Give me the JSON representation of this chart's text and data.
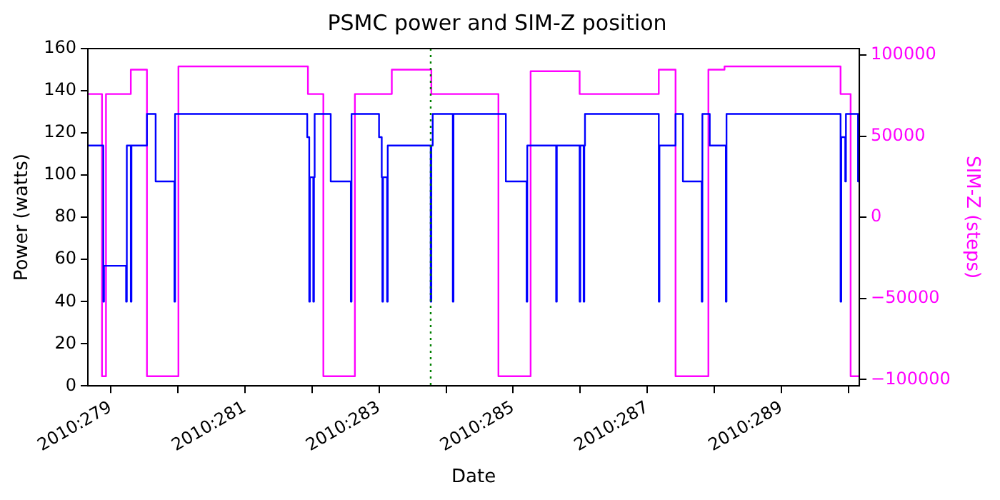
{
  "chart_data": {
    "type": "step",
    "title": "PSMC power and SIM-Z position",
    "xlabel": "Date",
    "ylabel": "Power (watts)",
    "y2label": "SIM-Z (steps)",
    "xlim": [
      "2010-10-05T15:50",
      "2010-10-17T03:50"
    ],
    "xticks": [
      {
        "value": "2010-10-06",
        "label": "2010:279"
      },
      {
        "value": "2010-10-07",
        "label": null
      },
      {
        "value": "2010-10-08",
        "label": "2010:281"
      },
      {
        "value": "2010-10-09",
        "label": null
      },
      {
        "value": "2010-10-10",
        "label": "2010:283"
      },
      {
        "value": "2010-10-11",
        "label": null
      },
      {
        "value": "2010-10-12",
        "label": "2010:285"
      },
      {
        "value": "2010-10-13",
        "label": null
      },
      {
        "value": "2010-10-14",
        "label": "2010:287"
      },
      {
        "value": "2010-10-15",
        "label": null
      },
      {
        "value": "2010-10-16",
        "label": "2010:289"
      },
      {
        "value": "2010-10-17",
        "label": null
      }
    ],
    "ylim": [
      0,
      160
    ],
    "yticks": [
      0,
      20,
      40,
      60,
      80,
      100,
      120,
      140,
      160
    ],
    "y2lim": [
      -104000,
      104000
    ],
    "y2ticks": [
      {
        "value": -100000,
        "label": "−100000"
      },
      {
        "value": -50000,
        "label": "−50000"
      },
      0,
      50000,
      100000
    ],
    "grid": false,
    "legend": false,
    "marker": "none",
    "line_style": "solid",
    "ref_lines": [
      {
        "axis": "x",
        "value": "2010-10-10T18:29",
        "color": "#008000",
        "line_style": "dotted"
      }
    ],
    "series": [
      {
        "color": "#0000ff",
        "axis": "y",
        "x": [
          "2010-10-05T15:50",
          "2010-10-05T21:22",
          "2010-10-05T21:36",
          "2010-10-06T05:31",
          "2010-10-06T05:46",
          "2010-10-06T07:12",
          "2010-10-06T07:26",
          "2010-10-06T12:58",
          "2010-10-06T16:05",
          "2010-10-06T22:48",
          "2010-10-06T23:02",
          "2010-10-08T22:19",
          "2010-10-08T23:02",
          "2010-10-08T23:17",
          "2010-10-09T00:29",
          "2010-10-09T00:43",
          "2010-10-09T00:58",
          "2010-10-09T06:43",
          "2010-10-09T13:55",
          "2010-10-09T14:10",
          "2010-10-10T00:00",
          "2010-10-10T00:58",
          "2010-10-10T01:12",
          "2010-10-10T01:26",
          "2010-10-10T02:53",
          "2010-10-10T03:07",
          "2010-10-10T18:29",
          "2010-10-10T18:43",
          "2010-10-10T19:12",
          "2010-10-11T02:24",
          "2010-10-11T02:38",
          "2010-10-11T21:22",
          "2010-10-12T04:48",
          "2010-10-12T05:02",
          "2010-10-12T15:22",
          "2010-10-12T15:36",
          "2010-10-12T23:46",
          "2010-10-13T00:00",
          "2010-10-13T01:12",
          "2010-10-13T01:26",
          "2010-10-13T01:41",
          "2010-10-14T04:05",
          "2010-10-14T04:19",
          "2010-10-14T10:05",
          "2010-10-14T12:43",
          "2010-10-14T19:26",
          "2010-10-14T19:41",
          "2010-10-14T22:19",
          "2010-10-15T04:05",
          "2010-10-15T04:19",
          "2010-10-16T21:07",
          "2010-10-16T21:22",
          "2010-10-16T22:48",
          "2010-10-16T23:02",
          "2010-10-17T03:22",
          "2010-10-17T03:50"
        ],
        "values": [
          114,
          40,
          57,
          40,
          114,
          40,
          114,
          129,
          97,
          40,
          129,
          118,
          40,
          99,
          40,
          99,
          129,
          97,
          40,
          129,
          118,
          99,
          40,
          99,
          40,
          114,
          40,
          114,
          129,
          40,
          129,
          97,
          40,
          114,
          40,
          114,
          40,
          114,
          40,
          114,
          129,
          40,
          114,
          129,
          97,
          40,
          129,
          114,
          40,
          129,
          40,
          118,
          97,
          129,
          97,
          97
        ]
      },
      {
        "color": "#ff00ff",
        "axis": "y2",
        "x": [
          "2010-10-05T15:50",
          "2010-10-05T20:53",
          "2010-10-05T22:19",
          "2010-10-06T07:12",
          "2010-10-06T12:58",
          "2010-10-07T00:14",
          "2010-10-08T22:34",
          "2010-10-09T04:05",
          "2010-10-09T15:22",
          "2010-10-10T04:34",
          "2010-10-10T18:43",
          "2010-10-11T18:43",
          "2010-10-12T06:14",
          "2010-10-12T23:46",
          "2010-10-14T04:05",
          "2010-10-14T10:05",
          "2010-10-14T21:50",
          "2010-10-15T03:36",
          "2010-10-16T21:07",
          "2010-10-17T00:43",
          "2010-10-17T03:50"
        ],
        "values": [
          76000,
          -98000,
          76000,
          91000,
          -98000,
          93000,
          76000,
          -98000,
          76000,
          91000,
          76000,
          -98000,
          90000,
          76000,
          91000,
          -98000,
          91000,
          93000,
          76000,
          -98000,
          -98000
        ]
      }
    ]
  }
}
